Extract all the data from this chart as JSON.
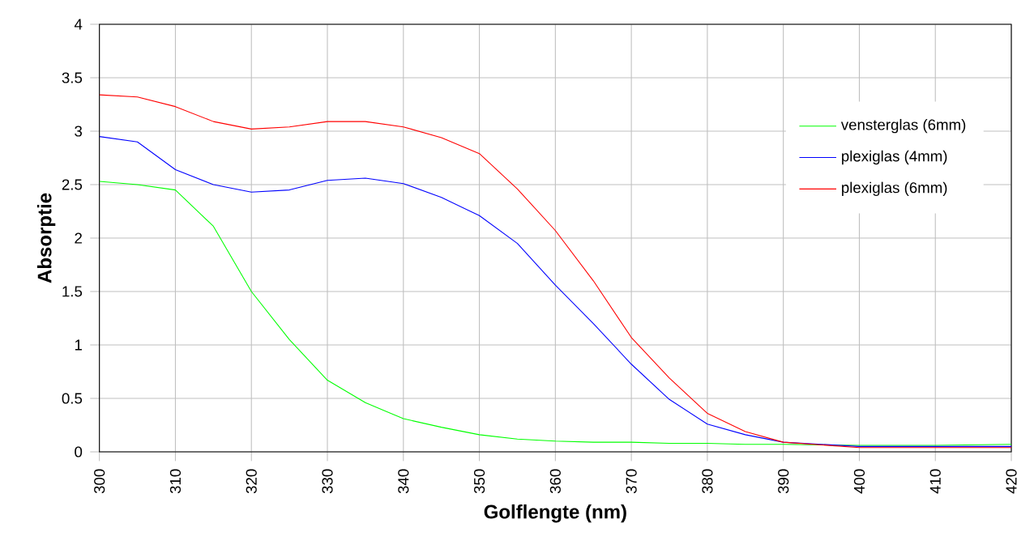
{
  "chart_data": {
    "type": "line",
    "xlabel": "Golflengte (nm)",
    "ylabel": "Absorptie",
    "x": [
      300,
      305,
      310,
      315,
      320,
      325,
      330,
      335,
      340,
      345,
      350,
      355,
      360,
      365,
      370,
      375,
      380,
      385,
      390,
      400,
      410,
      420
    ],
    "series": [
      {
        "name": "vensterglas (6mm)",
        "color": "#00ff00",
        "values": [
          2.53,
          2.5,
          2.45,
          2.11,
          1.5,
          1.05,
          0.67,
          0.46,
          0.31,
          0.23,
          0.16,
          0.12,
          0.1,
          0.09,
          0.09,
          0.08,
          0.08,
          0.07,
          0.07,
          0.06,
          0.06,
          0.07
        ]
      },
      {
        "name": "plexiglas (4mm)",
        "color": "#0000ff",
        "values": [
          2.95,
          2.9,
          2.64,
          2.5,
          2.43,
          2.45,
          2.54,
          2.56,
          2.51,
          2.38,
          2.21,
          1.95,
          1.56,
          1.2,
          0.82,
          0.49,
          0.26,
          0.16,
          0.09,
          0.05,
          0.05,
          0.05
        ]
      },
      {
        "name": "plexiglas (6mm)",
        "color": "#ff0000",
        "values": [
          3.34,
          3.32,
          3.23,
          3.09,
          3.02,
          3.04,
          3.09,
          3.09,
          3.04,
          2.94,
          2.79,
          2.46,
          2.07,
          1.6,
          1.07,
          0.69,
          0.36,
          0.19,
          0.09,
          0.04,
          0.04,
          0.04
        ]
      }
    ],
    "xlim": [
      300,
      420
    ],
    "xticks": [
      300,
      310,
      320,
      330,
      340,
      350,
      360,
      370,
      380,
      390,
      400,
      410,
      420
    ],
    "ylim": [
      0,
      4
    ],
    "yticks": [
      0,
      0.5,
      1,
      1.5,
      2,
      2.5,
      3,
      3.5,
      4
    ],
    "grid": true,
    "legend": "top right",
    "marker": "none",
    "line_style": "solid"
  }
}
